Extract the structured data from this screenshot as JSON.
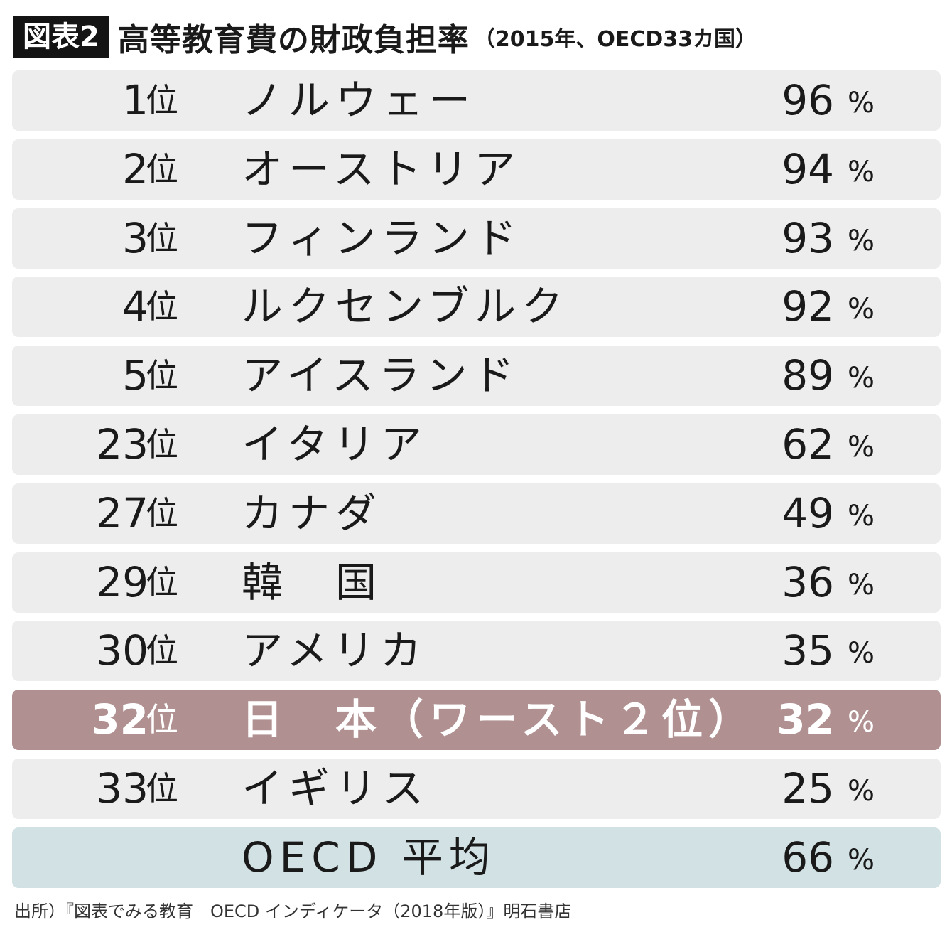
{
  "figure_label": "図表2",
  "title": "高等教育費の財政負担率",
  "subtitle": "（2015年、OECD33カ国）",
  "rank_unit": "位",
  "value_unit": "%",
  "colors": {
    "row_default": "#ededed",
    "row_highlight": "#b09090",
    "row_average": "#d2e1e3",
    "label_background": "#141414"
  },
  "chart_data": {
    "type": "table",
    "title": "高等教育費の財政負担率",
    "subtitle": "（2015年、OECD33カ国）",
    "columns": [
      "rank",
      "country",
      "value_percent"
    ],
    "rows": [
      {
        "rank": "1",
        "country": "ノルウェー",
        "value": "96"
      },
      {
        "rank": "2",
        "country": "オーストリア",
        "value": "94"
      },
      {
        "rank": "3",
        "country": "フィンランド",
        "value": "93"
      },
      {
        "rank": "4",
        "country": "ルクセンブルク",
        "value": "92"
      },
      {
        "rank": "5",
        "country": "アイスランド",
        "value": "89"
      },
      {
        "rank": "23",
        "country": "イタリア",
        "value": "62"
      },
      {
        "rank": "27",
        "country": "カナダ",
        "value": "49"
      },
      {
        "rank": "29",
        "country": "韓　国",
        "value": "36"
      },
      {
        "rank": "30",
        "country": "アメリカ",
        "value": "35"
      },
      {
        "rank": "32",
        "country": "日　本（ワースト２位）",
        "value": "32",
        "highlight": true
      },
      {
        "rank": "33",
        "country": "イギリス",
        "value": "25"
      },
      {
        "rank": "",
        "country": "OECD 平均",
        "value": "66",
        "average": true
      }
    ]
  },
  "source": "出所）『図表でみる教育　OECD インディケータ（2018年版）』明石書店"
}
